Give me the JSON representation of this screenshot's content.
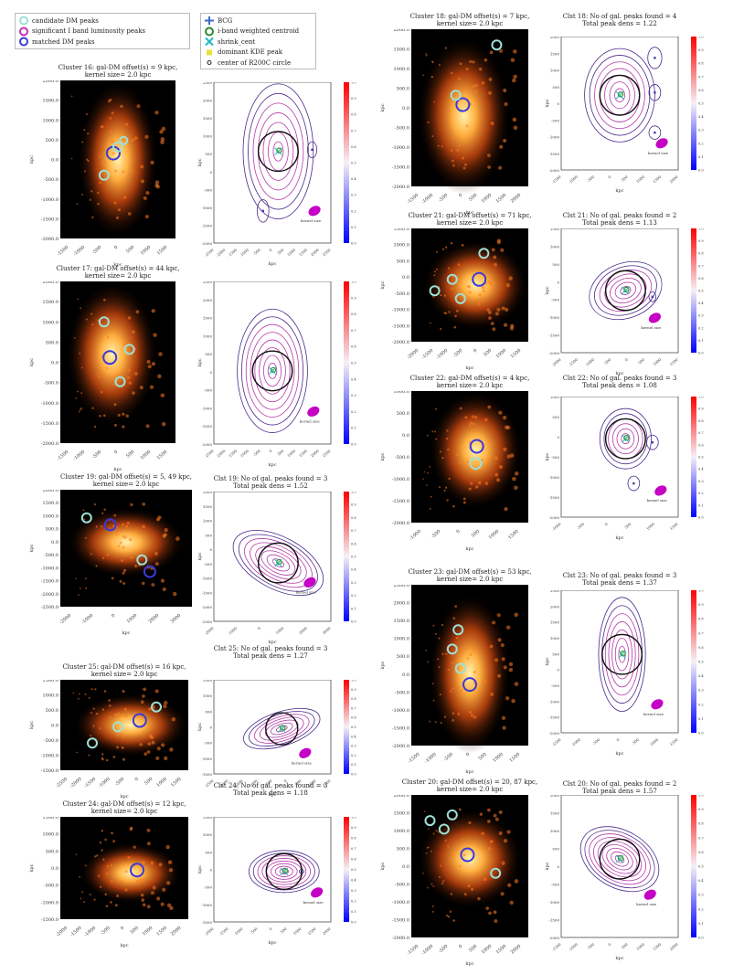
{
  "legend_dm": {
    "items": [
      {
        "label": "candidate DM peaks",
        "color": "#9ee0d6",
        "icon": "ring-icon"
      },
      {
        "label": "significant I band luminosity peaks",
        "color": "#c22fb8",
        "icon": "ring-icon"
      },
      {
        "label": "matched DM peaks",
        "color": "#3a3ad8",
        "icon": "ring-icon"
      }
    ]
  },
  "legend_markers": {
    "items": [
      {
        "label": "BCG",
        "color": "#3b6cc4",
        "icon": "plus-icon"
      },
      {
        "label": "i-band weighted centroid",
        "color": "#2f8a2f",
        "icon": "ring-icon"
      },
      {
        "label": "shrink_cent",
        "color": "#22b9c9",
        "icon": "x-icon"
      },
      {
        "label": "dominant KDE peak",
        "color": "#e8e23a",
        "icon": "square-icon"
      },
      {
        "label": "center of R200C circle",
        "color": "#222222",
        "icon": "dot-icon"
      }
    ]
  },
  "panels": [
    {
      "id": "c16",
      "dm_title": [
        "Cluster 16: gal-DM offset(s) = 9 kpc,",
        "kernel size= 2.0 kpc"
      ],
      "kde_title": [
        "Clst 16: No of gal. peaks found = 3",
        "Total peak dens = 1.07"
      ],
      "dm_yticks": [
        "2000.0",
        "1500.0",
        "1000.0",
        "500.0",
        "0.0",
        "-500.0",
        "-1000.0",
        "-1500.0",
        "-2000.0"
      ],
      "dm_xticks": [
        "-1500",
        "-1000",
        "-500",
        "0",
        "500",
        "1000",
        "1500"
      ],
      "kde_yticks": [
        "2500",
        "2000",
        "1500",
        "1000",
        "500",
        "0",
        "-500",
        "-1000",
        "-1500",
        "-2000"
      ],
      "kde_xticks": [
        "-2500",
        "-2000",
        "-1500",
        "-1000",
        "-500",
        "0",
        "500",
        "1000",
        "1500",
        "2000",
        "2500"
      ]
    },
    {
      "id": "c17",
      "dm_title": [
        "Cluster 17: gal-DM offset(s) = 44 kpc,",
        "kernel size= 2.0 kpc"
      ],
      "kde_title": [
        "Clst 17: No of gal. peaks found = 3",
        "Total peak dens = 1.09"
      ],
      "dm_yticks": [
        "2000.0",
        "1500.0",
        "1000.0",
        "500.0",
        "0.0",
        "-500.0",
        "-1000.0",
        "-1500.0",
        "-2000.0"
      ],
      "dm_xticks": [
        "-1500",
        "-1000",
        "-500",
        "0",
        "500",
        "1000",
        "1500"
      ],
      "kde_yticks": [
        "2500",
        "2000",
        "1500",
        "1000",
        "500",
        "0",
        "-500",
        "-1000",
        "-1500",
        "-2000"
      ],
      "kde_xticks": [
        "-2500",
        "-2000",
        "-1500",
        "-1000",
        "-500",
        "0",
        "500",
        "1000",
        "1500",
        "2000",
        "2500"
      ]
    },
    {
      "id": "c19",
      "dm_title": [
        "Cluster 19: gal-DM offset(s) = 5, 49 kpc,",
        "kernel size= 2.0 kpc"
      ],
      "kde_title": [
        "Clst 19: No of gal. peaks found = 3",
        "Total peak dens = 1.52"
      ],
      "dm_yticks": [
        "2000.0",
        "1500.0",
        "1000.0",
        "500.0",
        "0.0",
        "-500.0",
        "-1000.0",
        "-1500.0",
        "-2000.0",
        "-2500.0"
      ],
      "dm_xticks": [
        "-2000",
        "-1000",
        "0",
        "1000",
        "2000",
        "3000"
      ],
      "kde_yticks": [
        "2000",
        "1500",
        "1000",
        "500",
        "0",
        "-500",
        "-1000",
        "-1500",
        "-2000",
        "-2500"
      ],
      "kde_xticks": [
        "-2000",
        "-1000",
        "0",
        "1000",
        "2000",
        "3000"
      ]
    },
    {
      "id": "c25",
      "dm_title": [
        "Cluster 25: gal-DM offset(s) = 16 kpc,",
        "kernel size= 2.0 kpc"
      ],
      "kde_title": [
        "Clst 25: No of gal. peaks found = 3",
        "Total peak dens = 1.27"
      ],
      "dm_yticks": [
        "1500.0",
        "1000.0",
        "500.0",
        "0.0",
        "-500.0",
        "-1000.0",
        "-1500.0"
      ],
      "dm_xticks": [
        "-2500",
        "-2000",
        "-1500",
        "-1000",
        "-500",
        "0",
        "500",
        "1000",
        "1500"
      ],
      "kde_yticks": [
        "1500",
        "1000",
        "500",
        "0",
        "-500",
        "-1000",
        "-1500"
      ],
      "kde_xticks": [
        "-2500",
        "-2000",
        "-1500",
        "-1000",
        "-500",
        "0",
        "500",
        "1000",
        "1500"
      ]
    },
    {
      "id": "c24",
      "dm_title": [
        "Cluster 24: gal-DM offset(s) = 12 kpc,",
        "kernel size= 2.0 kpc"
      ],
      "kde_title": [
        "Clst 24: No of gal. peaks found = 3",
        "Total peak dens = 1.18"
      ],
      "dm_yticks": [
        "1500.0",
        "1000.0",
        "500.0",
        "0.0",
        "-500.0",
        "-1000.0",
        "-1500.0"
      ],
      "dm_xticks": [
        "-2000",
        "-1500",
        "-1000",
        "-500",
        "0",
        "500",
        "1000",
        "1500",
        "2000"
      ],
      "kde_yticks": [
        "1500",
        "1000",
        "500",
        "0",
        "-500",
        "-1000",
        "-1500"
      ],
      "kde_xticks": [
        "-2000",
        "-1500",
        "-1000",
        "-500",
        "0",
        "500",
        "1000",
        "1500",
        "2000"
      ]
    },
    {
      "id": "c18",
      "dm_title": [
        "Cluster 18: gal-DM offset(s) = 7 kpc,",
        "kernel size= 2.0 kpc"
      ],
      "kde_title": [
        "Clst 18: No of gal. peaks found = 4",
        "Total peak dens = 1.22"
      ],
      "dm_yticks": [
        "2000.0",
        "1500.0",
        "1000.0",
        "500.0",
        "0.0",
        "-500.0",
        "-1000.0",
        "-1500.0",
        "-2000.0"
      ],
      "dm_xticks": [
        "-1500",
        "-1000",
        "-500",
        "0",
        "500",
        "1000",
        "1500",
        "2000"
      ],
      "kde_yticks": [
        "2000",
        "1500",
        "1000",
        "500",
        "0",
        "-500",
        "-1000",
        "-1500",
        "-2000"
      ],
      "kde_xticks": [
        "-1500",
        "-1000",
        "-500",
        "0",
        "500",
        "1000",
        "1500",
        "2000"
      ]
    },
    {
      "id": "c21",
      "dm_title": [
        "Cluster 21: gal-DM offset(s) = 71 kpc,",
        "kernel size= 2.0 kpc"
      ],
      "kde_title": [
        "Clst 21: No of gal. peaks found = 2",
        "Total peak dens = 1.13"
      ],
      "dm_yticks": [
        "1500.0",
        "1000.0",
        "500.0",
        "0.0",
        "-500.0",
        "-1000.0",
        "-1500.0",
        "-2000.0"
      ],
      "dm_xticks": [
        "-2000",
        "-1500",
        "-1000",
        "-500",
        "0",
        "500",
        "1000",
        "1500"
      ],
      "kde_yticks": [
        "1500",
        "1000",
        "500",
        "0",
        "-500",
        "-1000",
        "-1500",
        "-2000"
      ],
      "kde_xticks": [
        "-2000",
        "-1500",
        "-1000",
        "-500",
        "0",
        "500",
        "1000",
        "1500"
      ]
    },
    {
      "id": "c22",
      "dm_title": [
        "Cluster 22: gal-DM offset(s) = 4 kpc,",
        "kernel size= 2.0 kpc"
      ],
      "kde_title": [
        "Clst 22: No of gal. peaks found = 3",
        "Total peak dens = 1.08"
      ],
      "dm_yticks": [
        "1000.0",
        "500.0",
        "0.0",
        "-500.0",
        "-1000.0",
        "-1500.0",
        "-2000.0"
      ],
      "dm_xticks": [
        "-1000",
        "-500",
        "0",
        "500",
        "1000",
        "1500"
      ],
      "kde_yticks": [
        "1000",
        "500",
        "0",
        "-500",
        "-1000",
        "-1500",
        "-2000"
      ],
      "kde_xticks": [
        "-1000",
        "-500",
        "0",
        "500",
        "1000",
        "1500"
      ]
    },
    {
      "id": "c23",
      "dm_title": [
        "Cluster 23: gal-DM offset(s) = 53 kpc,",
        "kernel size= 2.0 kpc"
      ],
      "kde_title": [
        "Clst 23: No of gal. peaks found = 3",
        "Total peak dens = 1.37"
      ],
      "dm_yticks": [
        "2500.0",
        "2000.0",
        "1500.0",
        "1000.0",
        "500.0",
        "0.0",
        "-500.0",
        "-1000.0",
        "-1500.0",
        "-2000.0"
      ],
      "dm_xticks": [
        "-1500",
        "-1000",
        "-500",
        "0",
        "500",
        "1000",
        "1500"
      ],
      "kde_yticks": [
        "2500",
        "2000",
        "1500",
        "1000",
        "500",
        "0",
        "-500",
        "-1000",
        "-1500",
        "-2000"
      ],
      "kde_xticks": [
        "-1500",
        "-1000",
        "-500",
        "0",
        "500",
        "1000",
        "1500"
      ]
    },
    {
      "id": "c20",
      "dm_title": [
        "Cluster 20: gal-DM offset(s) = 20, 87 kpc,",
        "kernel size= 2.0 kpc"
      ],
      "kde_title": [
        "Clst 20: No of gal. peaks found = 2",
        "Total peak dens = 1.57"
      ],
      "dm_yticks": [
        "2000.0",
        "1500.0",
        "1000.0",
        "500.0",
        "0.0",
        "-500.0",
        "-1000.0",
        "-1500.0",
        "-2000.0"
      ],
      "dm_xticks": [
        "-1500",
        "-1000",
        "-500",
        "0",
        "500",
        "1000",
        "1500",
        "2000"
      ],
      "kde_yticks": [
        "2000",
        "1500",
        "1000",
        "500",
        "0",
        "-500",
        "-1000",
        "-1500",
        "-2000"
      ],
      "kde_xticks": [
        "-1500",
        "-1000",
        "-500",
        "0",
        "500",
        "1000",
        "1500",
        "2000"
      ]
    }
  ],
  "axis_label_kpc": "kpc",
  "kernel_label": "kernel size",
  "colorbar_ticks": [
    "1.0",
    "0.9",
    "0.8",
    "0.7",
    "0.6",
    "0.5",
    "0.4",
    "0.3",
    "0.2",
    "0.1",
    "0.0"
  ],
  "colors": {
    "map_bg": "#000000",
    "glow": "#ff8a1e",
    "hot": "#fff2b0",
    "contour": "#7a3aa6",
    "r200": "#111111",
    "kernel": "#c400c4"
  }
}
